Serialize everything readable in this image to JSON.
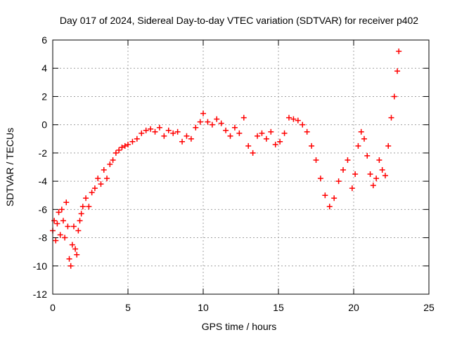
{
  "chart_data": {
    "type": "scatter",
    "title": "Day 017 of 2024, Sidereal Day-to-day VTEC variation (SDTVAR) for receiver p402",
    "xlabel": "GPS time / hours",
    "ylabel": "SDTVAR / TECUs",
    "xlim": [
      0,
      25
    ],
    "ylim": [
      -12,
      6
    ],
    "xticks": [
      0,
      5,
      10,
      15,
      20,
      25
    ],
    "yticks": [
      -12,
      -10,
      -8,
      -6,
      -4,
      -2,
      0,
      2,
      4,
      6
    ],
    "grid": true,
    "marker": "+",
    "color": "#ff0000",
    "series": [
      {
        "name": "SDTVAR",
        "x": [
          0.0,
          0.1,
          0.2,
          0.3,
          0.4,
          0.5,
          0.6,
          0.7,
          0.8,
          0.9,
          1.0,
          1.1,
          1.2,
          1.3,
          1.4,
          1.5,
          1.6,
          1.7,
          1.8,
          1.9,
          2.0,
          2.2,
          2.4,
          2.6,
          2.8,
          3.0,
          3.2,
          3.4,
          3.6,
          3.8,
          4.0,
          4.2,
          4.4,
          4.6,
          4.8,
          5.0,
          5.3,
          5.6,
          5.9,
          6.2,
          6.5,
          6.8,
          7.1,
          7.4,
          7.7,
          8.0,
          8.3,
          8.6,
          8.9,
          9.2,
          9.5,
          9.8,
          10.0,
          10.3,
          10.6,
          10.9,
          11.2,
          11.5,
          11.8,
          12.1,
          12.4,
          12.7,
          13.0,
          13.3,
          13.6,
          13.9,
          14.2,
          14.5,
          14.8,
          15.1,
          15.4,
          15.7,
          16.0,
          16.3,
          16.6,
          16.9,
          17.2,
          17.5,
          17.8,
          18.1,
          18.4,
          18.7,
          19.0,
          19.3,
          19.6,
          19.9,
          20.1,
          20.3,
          20.5,
          20.7,
          20.9,
          21.1,
          21.3,
          21.5,
          21.7,
          21.9,
          22.1,
          22.3,
          22.5,
          22.7,
          22.9,
          23.0
        ],
        "y": [
          -7.5,
          -6.8,
          -8.2,
          -7.0,
          -6.2,
          -7.8,
          -6.0,
          -6.8,
          -8.0,
          -5.5,
          -7.2,
          -9.5,
          -10.0,
          -8.5,
          -7.2,
          -8.8,
          -9.2,
          -7.5,
          -6.8,
          -6.3,
          -5.8,
          -5.2,
          -5.8,
          -4.8,
          -4.5,
          -3.8,
          -4.2,
          -3.2,
          -3.8,
          -2.8,
          -2.5,
          -2.0,
          -1.8,
          -1.6,
          -1.5,
          -1.4,
          -1.2,
          -1.0,
          -0.6,
          -0.4,
          -0.3,
          -0.5,
          -0.2,
          -0.8,
          -0.4,
          -0.6,
          -0.5,
          -1.2,
          -0.8,
          -1.0,
          -0.2,
          0.2,
          0.8,
          0.2,
          0.0,
          0.4,
          0.1,
          -0.4,
          -0.8,
          -0.2,
          -0.6,
          0.5,
          -1.5,
          -2.0,
          -0.8,
          -0.6,
          -1.0,
          -0.5,
          -1.4,
          -1.2,
          -0.6,
          0.5,
          0.4,
          0.3,
          0.0,
          -0.5,
          -1.5,
          -2.5,
          -3.8,
          -5.0,
          -5.8,
          -5.2,
          -4.0,
          -3.2,
          -2.5,
          -4.5,
          -3.5,
          -1.5,
          -0.5,
          -1.0,
          -2.2,
          -3.5,
          -4.3,
          -3.8,
          -2.5,
          -3.2,
          -3.6,
          -1.5,
          0.5,
          2.0,
          3.8,
          5.2
        ]
      }
    ]
  }
}
